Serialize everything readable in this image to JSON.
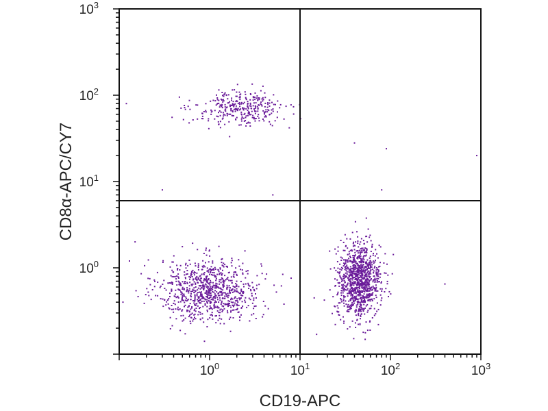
{
  "chart_data": {
    "type": "scatter",
    "title": "",
    "xlabel": "CD19-APC",
    "ylabel": "CD8α-APC/CY7",
    "x_scale": "log",
    "y_scale": "log",
    "xlim": [
      0.1,
      1000
    ],
    "ylim": [
      0.1,
      1000
    ],
    "x_ticks": [
      {
        "base": "10",
        "exp": "0",
        "value": 1
      },
      {
        "base": "10",
        "exp": "1",
        "value": 10
      },
      {
        "base": "10",
        "exp": "2",
        "value": 100
      },
      {
        "base": "10",
        "exp": "3",
        "value": 1000
      }
    ],
    "y_ticks": [
      {
        "base": "10",
        "exp": "0",
        "value": 1
      },
      {
        "base": "10",
        "exp": "1",
        "value": 10
      },
      {
        "base": "10",
        "exp": "2",
        "value": 100
      },
      {
        "base": "10",
        "exp": "3",
        "value": 1000
      }
    ],
    "gates": {
      "x": 10,
      "y": 6
    },
    "marker_color": "#6a1b9a",
    "populations": [
      {
        "name": "CD19- CD8a- (lower-left)",
        "x_center": 1.0,
        "y_center": 0.55,
        "x_spread_log": 0.28,
        "y_spread_log": 0.18,
        "count": 900
      },
      {
        "name": "CD19+ CD8a- (lower-right)",
        "x_center": 45,
        "y_center": 0.7,
        "x_spread_log": 0.12,
        "y_spread_log": 0.22,
        "count": 1050
      },
      {
        "name": "CD19- CD8a+ (upper-left)",
        "x_center": 2.2,
        "y_center": 70,
        "x_spread_log": 0.25,
        "y_spread_log": 0.1,
        "count": 330
      }
    ],
    "sparse_points": [
      {
        "x": 40,
        "y": 28
      },
      {
        "x": 90,
        "y": 24
      },
      {
        "x": 900,
        "y": 20
      },
      {
        "x": 80,
        "y": 8
      },
      {
        "x": 400,
        "y": 0.65
      },
      {
        "x": 10,
        "y": 55
      },
      {
        "x": 0.3,
        "y": 8
      },
      {
        "x": 0.12,
        "y": 80
      },
      {
        "x": 0.13,
        "y": 1.2
      },
      {
        "x": 0.11,
        "y": 0.4
      },
      {
        "x": 0.15,
        "y": 2
      },
      {
        "x": 5,
        "y": 7
      }
    ]
  }
}
